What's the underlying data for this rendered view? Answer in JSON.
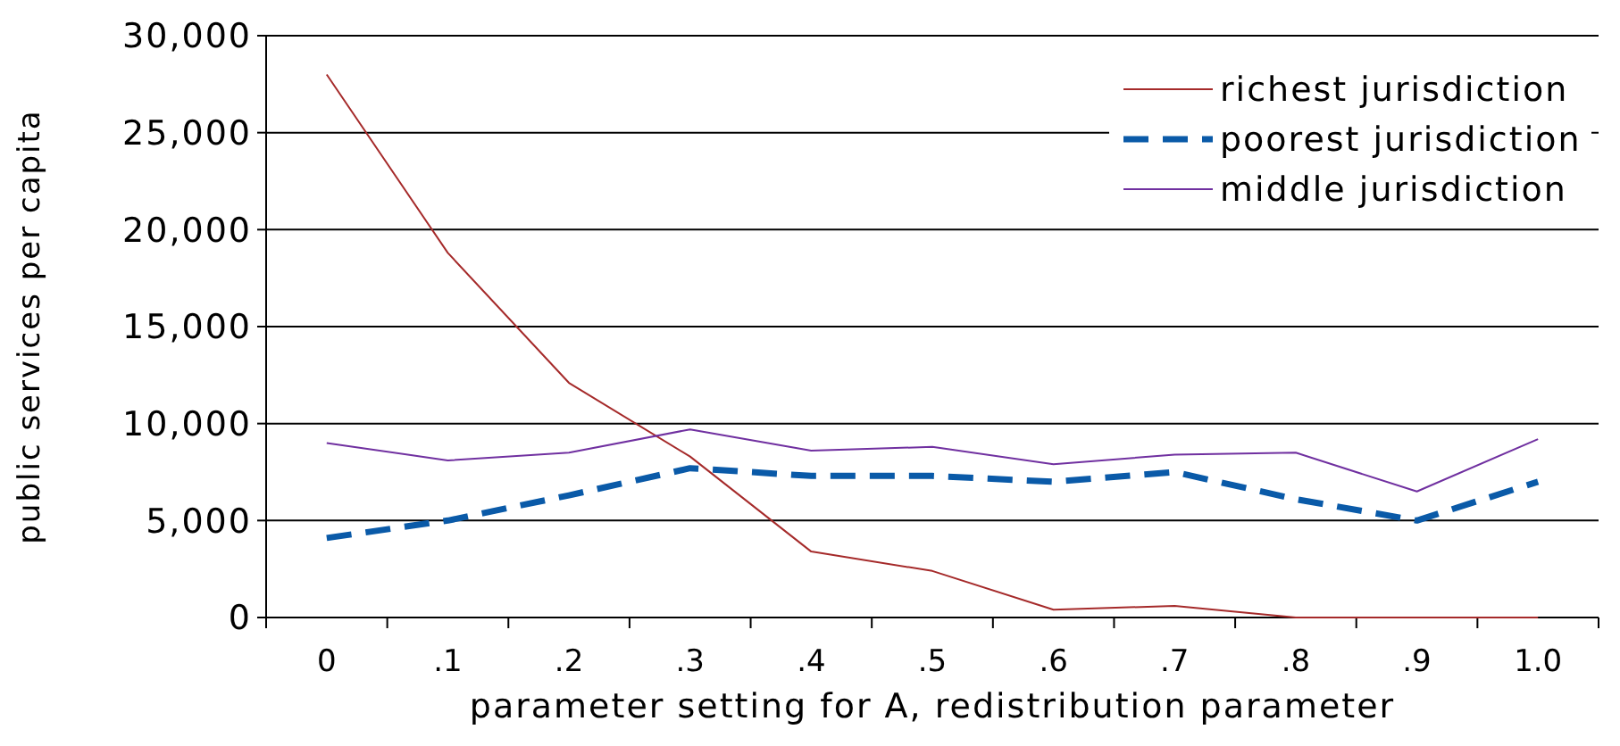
{
  "chart_data": {
    "type": "line",
    "xlabel": "parameter setting for A, redistribution parameter",
    "ylabel": "public services per capita",
    "categories": [
      "0",
      ".1",
      ".2",
      ".3",
      ".4",
      ".5",
      ".6",
      ".7",
      ".8",
      ".9",
      "1.0"
    ],
    "series": [
      {
        "name": "richest jurisdiction",
        "color": "#a52a2a",
        "line_style": "solid",
        "values": [
          28000,
          18800,
          12100,
          8300,
          3400,
          2400,
          400,
          600,
          0,
          0,
          0
        ]
      },
      {
        "name": "poorest jurisdiction",
        "color": "#0a5aa8",
        "line_style": "dashed",
        "values": [
          4100,
          5000,
          6300,
          7700,
          7300,
          7300,
          7000,
          7500,
          6100,
          5000,
          7000
        ]
      },
      {
        "name": "middle jurisdiction",
        "color": "#7030a0",
        "line_style": "solid",
        "values": [
          9000,
          8100,
          8500,
          9700,
          8600,
          8800,
          7900,
          8400,
          8500,
          6500,
          9200
        ]
      }
    ],
    "ylim": [
      0,
      30000
    ],
    "yticks": [
      {
        "value": 0,
        "label": "0"
      },
      {
        "value": 5000,
        "label": "5,000"
      },
      {
        "value": 10000,
        "label": "10,000"
      },
      {
        "value": 15000,
        "label": "15,000"
      },
      {
        "value": 20000,
        "label": "20,000"
      },
      {
        "value": 25000,
        "label": "25,000"
      },
      {
        "value": 30000,
        "label": "30,000"
      }
    ],
    "grid": "y",
    "legend": "top right",
    "marker": "none"
  }
}
